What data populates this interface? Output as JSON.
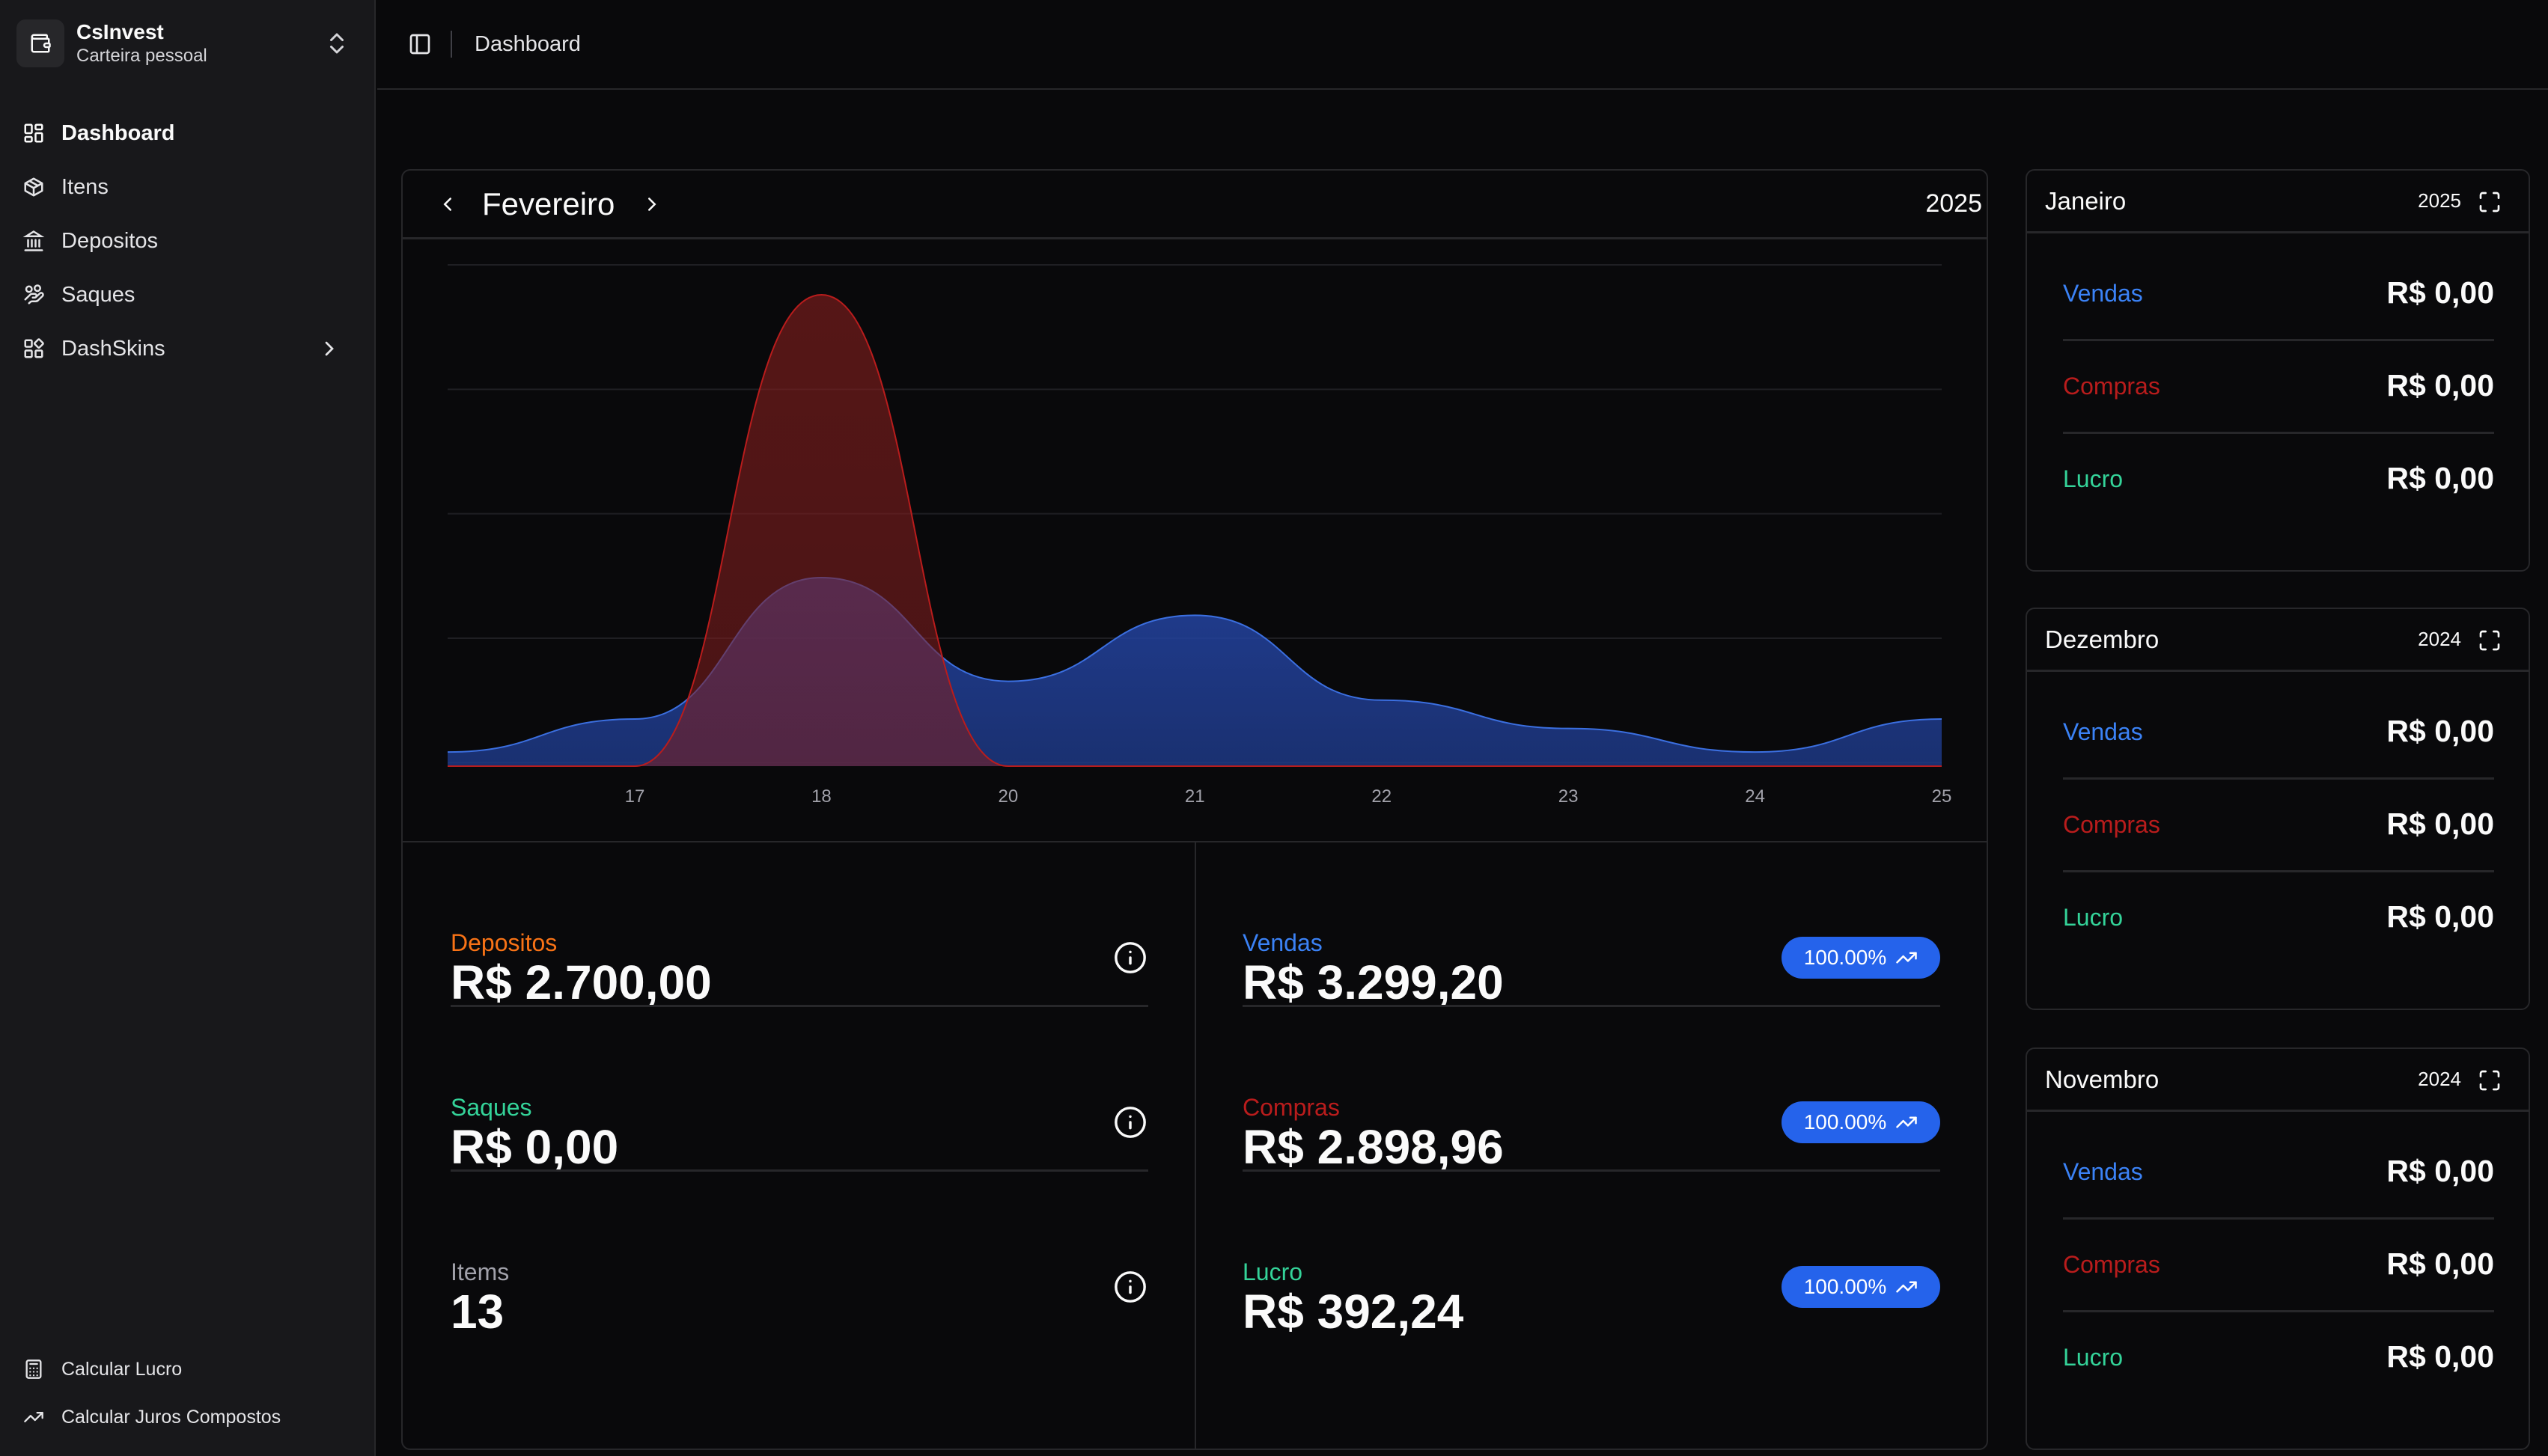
{
  "brand": {
    "name": "CsInvest",
    "subtitle": "Carteira pessoal"
  },
  "sidebar": {
    "items": [
      {
        "label": "Dashboard",
        "icon": "layout-dashboard-icon",
        "active": true
      },
      {
        "label": "Itens",
        "icon": "package-icon"
      },
      {
        "label": "Depositos",
        "icon": "landmark-icon"
      },
      {
        "label": "Saques",
        "icon": "hand-coins-icon"
      },
      {
        "label": "DashSkins",
        "icon": "layout-grid-icon",
        "expandable": true
      }
    ],
    "bottom": [
      {
        "label": "Calcular Lucro",
        "icon": "calculator-icon"
      },
      {
        "label": "Calcular Juros Compostos",
        "icon": "trending-up-icon"
      }
    ]
  },
  "header": {
    "breadcrumb": "Dashboard"
  },
  "main": {
    "month": "Fevereiro",
    "year": "2025",
    "stats_left": [
      {
        "label": "Depositos",
        "value": "R$ 2.700,00",
        "color": "#f97316"
      },
      {
        "label": "Saques",
        "value": "R$ 0,00",
        "color": "#34d399"
      },
      {
        "label": "Items",
        "value": "13",
        "color": "#a1a1aa"
      }
    ],
    "stats_right": [
      {
        "label": "Vendas",
        "value": "R$ 3.299,20",
        "color": "#3b82f6",
        "badge": "100.00%"
      },
      {
        "label": "Compras",
        "value": "R$ 2.898,96",
        "color": "#b91c1c",
        "badge": "100.00%"
      },
      {
        "label": "Lucro",
        "value": "R$ 392,24",
        "color": "#34d399",
        "badge": "100.00%"
      }
    ]
  },
  "chart_data": {
    "type": "area",
    "categories": [
      "17",
      "18",
      "20",
      "21",
      "22",
      "23",
      "24",
      "25"
    ],
    "series": [
      {
        "values": [
          0.1,
          0.4,
          0.18,
          0.32,
          0.14,
          0.08,
          0.03,
          0.1
        ],
        "color": "#3b82f6"
      },
      {
        "values": [
          0.0,
          1.0,
          0.0,
          0.0,
          0.0,
          0.0,
          0.0,
          0.0
        ],
        "color": "#dc2626"
      }
    ],
    "grid": true
  },
  "month_cards": [
    {
      "month": "Janeiro",
      "year": "2025",
      "rows": [
        {
          "label": "Vendas",
          "value": "R$ 0,00",
          "color": "#3b82f6"
        },
        {
          "label": "Compras",
          "value": "R$ 0,00",
          "color": "#b91c1c"
        },
        {
          "label": "Lucro",
          "value": "R$ 0,00",
          "color": "#34d399"
        }
      ]
    },
    {
      "month": "Dezembro",
      "year": "2024",
      "rows": [
        {
          "label": "Vendas",
          "value": "R$ 0,00",
          "color": "#3b82f6"
        },
        {
          "label": "Compras",
          "value": "R$ 0,00",
          "color": "#b91c1c"
        },
        {
          "label": "Lucro",
          "value": "R$ 0,00",
          "color": "#34d399"
        }
      ]
    },
    {
      "month": "Novembro",
      "year": "2024",
      "rows": [
        {
          "label": "Vendas",
          "value": "R$ 0,00",
          "color": "#3b82f6"
        },
        {
          "label": "Compras",
          "value": "R$ 0,00",
          "color": "#b91c1c"
        },
        {
          "label": "Lucro",
          "value": "R$ 0,00",
          "color": "#34d399"
        }
      ]
    }
  ]
}
